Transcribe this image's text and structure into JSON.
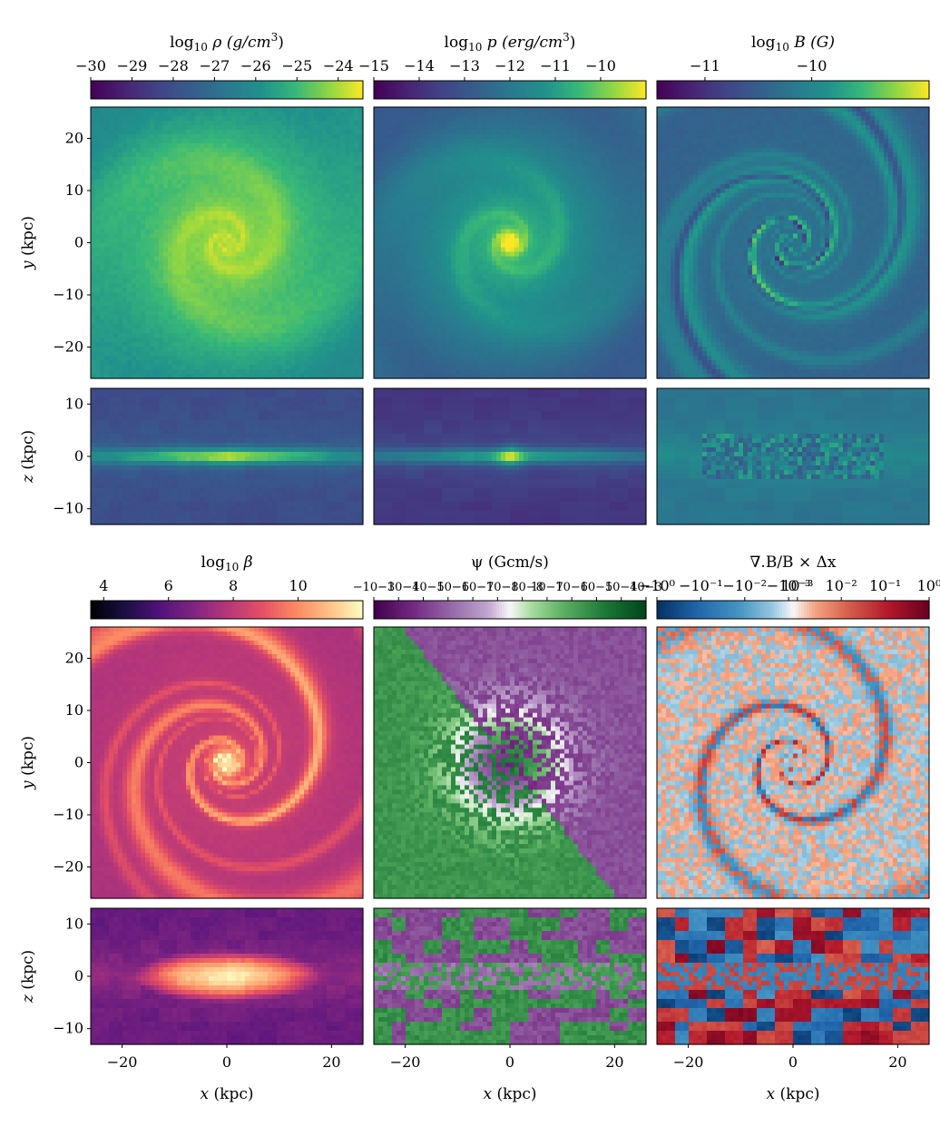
{
  "chart_data": {
    "type": "heatmap",
    "description_free": true,
    "shared_x": {
      "label": "x (kpc)",
      "ticks": [
        -20,
        0,
        20
      ],
      "range": [
        -26,
        26
      ]
    },
    "panels_rows": [
      {
        "label": "y (kpc)",
        "ticks": [
          20,
          10,
          0,
          -10,
          -20
        ],
        "range": [
          -26,
          26
        ]
      },
      {
        "label": "z (kpc)",
        "ticks": [
          10,
          0,
          -10
        ],
        "range": [
          -13,
          13
        ]
      }
    ],
    "fields": [
      {
        "id": "rho",
        "colorbar_title": "log10 ρ (g/cm³)",
        "title_main": "log",
        "title_sub": "10",
        "title_rest": " ρ (g/cm",
        "title_sup": "3",
        "title_end": ")",
        "colormap": "viridis",
        "tick_labels": [
          "−30",
          "−29",
          "−28",
          "−27",
          "−26",
          "−25",
          "−24"
        ],
        "tick_values": [
          -30,
          -29,
          -28,
          -27,
          -26,
          -25,
          -24
        ],
        "range": [
          -30,
          -23.4
        ],
        "style": "density"
      },
      {
        "id": "p",
        "colorbar_title": "log10 p (erg/cm³)",
        "title_main": "log",
        "title_sub": "10",
        "title_rest": " p (erg/cm",
        "title_sup": "3",
        "title_end": ")",
        "colormap": "viridis",
        "tick_labels": [
          "−15",
          "−14",
          "−13",
          "−12",
          "−11",
          "−10"
        ],
        "tick_values": [
          -15,
          -14,
          -13,
          -12,
          -11,
          -10
        ],
        "range": [
          -15,
          -9.0
        ],
        "style": "pressure"
      },
      {
        "id": "B",
        "colorbar_title": "log10 B (G)",
        "title_main": "log",
        "title_sub": "10",
        "title_rest": " B (G)",
        "title_sup": "",
        "title_end": "",
        "colormap": "viridis",
        "tick_labels": [
          "−11",
          "−10"
        ],
        "tick_values": [
          -11,
          -10
        ],
        "range": [
          -11.45,
          -8.9
        ],
        "style": "field"
      },
      {
        "id": "beta",
        "colorbar_title": "log10 β",
        "title_main": "log",
        "title_sub": "10",
        "title_rest": " β",
        "title_sup": "",
        "title_end": "",
        "colormap": "magma",
        "tick_labels": [
          "4",
          "6",
          "8",
          "10"
        ],
        "tick_values": [
          4,
          6,
          8,
          10
        ],
        "range": [
          3.6,
          12.0
        ],
        "style": "beta"
      },
      {
        "id": "psi",
        "colorbar_title": "ψ (Gcm/s)",
        "title_main": "ψ (Gcm/s)",
        "title_sub": "",
        "title_rest": "",
        "title_sup": "",
        "title_end": "",
        "colormap": "PRGn",
        "tick_labels": [
          "−10−3",
          "−10−4",
          "−10−5",
          "−10−6",
          "−10−7",
          "−10−8",
          "−10−8",
          "10−7",
          "10−6",
          "10−5",
          "10−4",
          "10−3"
        ],
        "tick_values": [
          0,
          1,
          2,
          3,
          4,
          5,
          6,
          7,
          8,
          9,
          10,
          11
        ],
        "range": [
          0,
          11
        ],
        "style": "psi"
      },
      {
        "id": "divB",
        "colorbar_title": "∇.B/B × Δx",
        "title_main": "∇.B/B × Δx",
        "title_sub": "",
        "title_rest": "",
        "title_sup": "",
        "title_end": "",
        "colormap": "RdBu_r",
        "tick_labels": [
          "−10⁰",
          "−10⁻¹",
          "−10⁻²",
          "−10⁻³",
          "10⁻³",
          "10⁻²",
          "10⁻¹",
          "10⁰"
        ],
        "tick_values": [
          0,
          1,
          2,
          3,
          3.2,
          4.2,
          5.2,
          6.2
        ],
        "range": [
          0,
          6.2
        ],
        "style": "div"
      }
    ]
  }
}
